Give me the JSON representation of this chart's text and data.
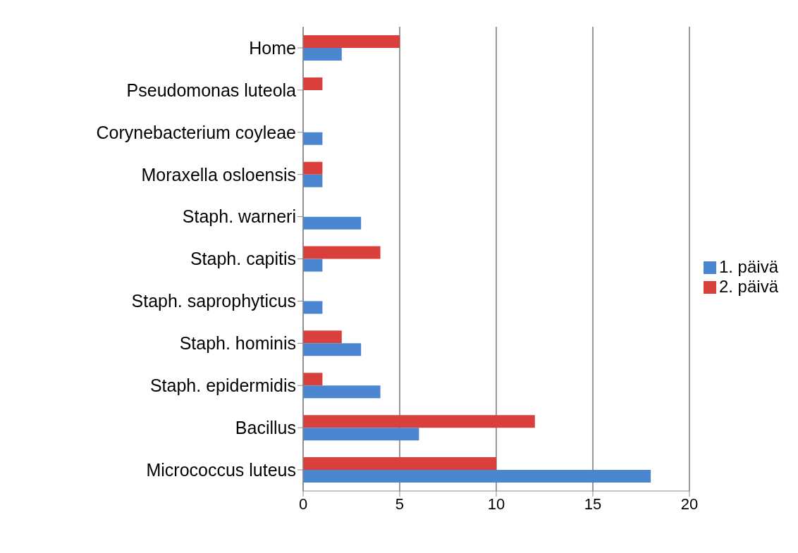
{
  "chart_data": {
    "type": "bar",
    "orientation": "horizontal",
    "categories": [
      "Home",
      "Pseudomonas luteola",
      "Corynebacterium coyleae",
      "Moraxella osloensis",
      "Staph. warneri",
      "Staph. capitis",
      "Staph. saprophyticus",
      "Staph. hominis",
      "Staph. epidermidis",
      "Bacillus",
      "Micrococcus luteus"
    ],
    "series": [
      {
        "name": "2. päivä",
        "color": "#d9403b",
        "values": [
          5,
          1,
          0,
          1,
          0,
          4,
          0,
          2,
          1,
          12,
          10
        ]
      },
      {
        "name": "1. päivä",
        "color": "#4a87d0",
        "values": [
          2,
          0,
          1,
          1,
          3,
          1,
          1,
          3,
          4,
          6,
          18
        ]
      }
    ],
    "xlim": [
      0,
      20
    ],
    "xticks": [
      0,
      5,
      10,
      15,
      20
    ],
    "grid": "x",
    "legend": "right"
  }
}
